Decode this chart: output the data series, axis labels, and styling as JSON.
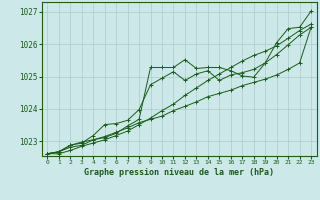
{
  "title": "Graphe pression niveau de la mer (hPa)",
  "background_color": "#cce8e8",
  "grid_color": "#aacccc",
  "line_color": "#1a5c1a",
  "xlim": [
    -0.5,
    23.5
  ],
  "ylim": [
    1022.55,
    1027.3
  ],
  "yticks": [
    1023,
    1024,
    1025,
    1026,
    1027
  ],
  "xticks": [
    0,
    1,
    2,
    3,
    4,
    5,
    6,
    7,
    8,
    9,
    10,
    11,
    12,
    13,
    14,
    15,
    16,
    17,
    18,
    19,
    20,
    21,
    22,
    23
  ],
  "lines": [
    [
      1022.62,
      1022.62,
      1022.72,
      1022.85,
      1022.95,
      1023.05,
      1023.18,
      1023.32,
      1023.52,
      1023.72,
      1023.95,
      1024.15,
      1024.42,
      1024.65,
      1024.88,
      1025.08,
      1025.28,
      1025.48,
      1025.65,
      1025.78,
      1025.95,
      1026.18,
      1026.42,
      1026.62
    ],
    [
      1022.62,
      1022.68,
      1022.82,
      1022.88,
      1023.05,
      1023.12,
      1023.25,
      1023.48,
      1023.68,
      1025.28,
      1025.28,
      1025.28,
      1025.52,
      1025.25,
      1025.28,
      1025.28,
      1025.18,
      1025.02,
      1024.98,
      1025.42,
      1026.05,
      1026.48,
      1026.52,
      1027.02
    ],
    [
      1022.62,
      1022.68,
      1022.88,
      1022.95,
      1023.18,
      1023.52,
      1023.55,
      1023.65,
      1023.98,
      1024.75,
      1024.95,
      1025.15,
      1024.88,
      1025.08,
      1025.18,
      1024.88,
      1025.05,
      1025.12,
      1025.22,
      1025.42,
      1025.68,
      1025.98,
      1026.28,
      1026.52
    ],
    [
      1022.62,
      1022.68,
      1022.88,
      1022.98,
      1023.05,
      1023.15,
      1023.28,
      1023.42,
      1023.58,
      1023.68,
      1023.78,
      1023.95,
      1024.08,
      1024.22,
      1024.38,
      1024.48,
      1024.58,
      1024.72,
      1024.82,
      1024.92,
      1025.05,
      1025.22,
      1025.42,
      1026.52
    ]
  ]
}
